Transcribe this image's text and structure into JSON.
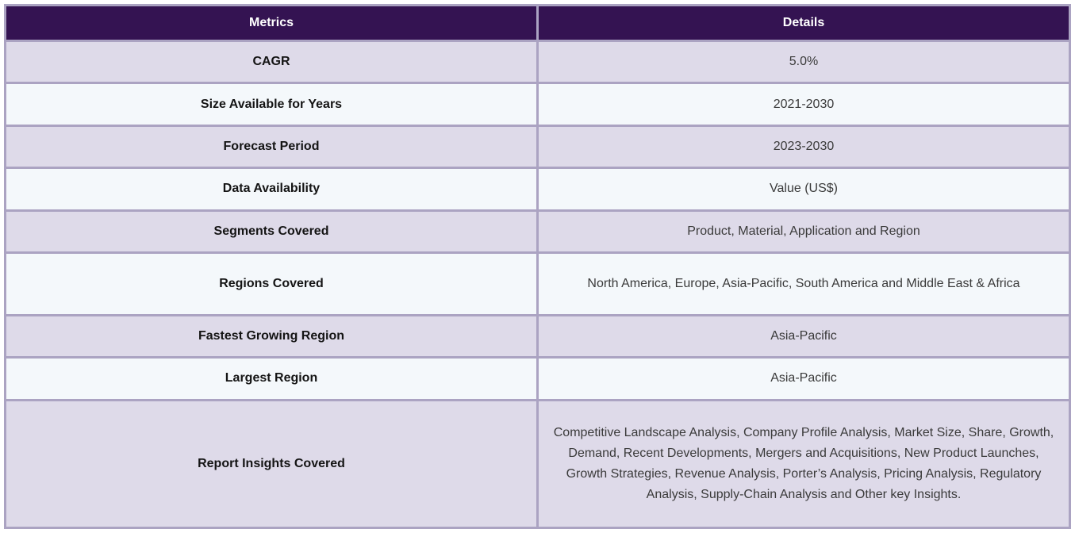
{
  "table": {
    "columns": {
      "metrics": "Metrics",
      "details": "Details"
    },
    "rows": [
      {
        "metric": "CAGR",
        "detail": "5.0%"
      },
      {
        "metric": "Size Available for Years",
        "detail": "2021-2030"
      },
      {
        "metric": "Forecast Period",
        "detail": "2023-2030"
      },
      {
        "metric": "Data Availability",
        "detail": "Value (US$)"
      },
      {
        "metric": "Segments Covered",
        "detail": "Product, Material, Application and Region"
      },
      {
        "metric": "Regions Covered",
        "detail": "North America, Europe, Asia-Pacific, South America and Middle East & Africa"
      },
      {
        "metric": "Fastest Growing Region",
        "detail": "Asia-Pacific"
      },
      {
        "metric": "Largest Region",
        "detail": "Asia-Pacific"
      },
      {
        "metric": "Report Insights Covered",
        "detail": "Competitive Landscape Analysis, Company Profile Analysis, Market Size, Share, Growth, Demand, Recent Developments, Mergers and Acquisitions, New Product Launches, Growth Strategies, Revenue Analysis, Porter’s Analysis, Pricing Analysis, Regulatory Analysis, Supply-Chain Analysis and Other key Insights."
      }
    ],
    "colors": {
      "header_bg": "#341352",
      "header_text": "#ffffff",
      "row_lavender": "#dedae9",
      "row_light": "#f4f8fb",
      "border": "#aba3c2"
    }
  }
}
